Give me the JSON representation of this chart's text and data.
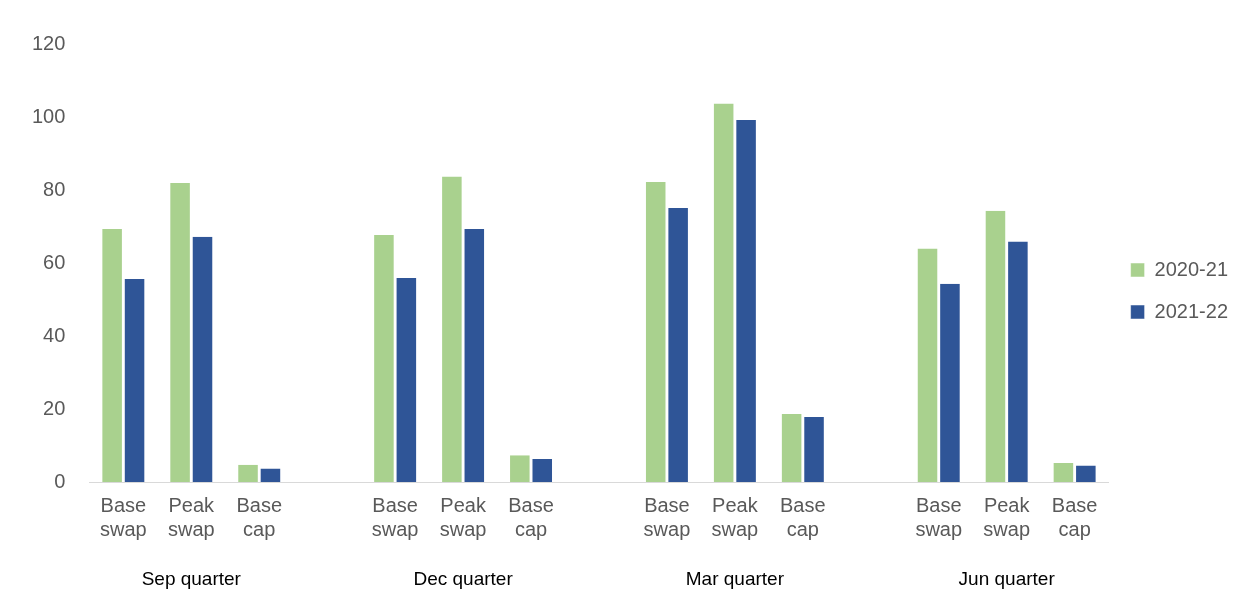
{
  "chart_data": {
    "type": "bar",
    "categories": [
      "Base swap",
      "Peak swap",
      "Base cap",
      null,
      "Base swap",
      "Peak swap",
      "Base cap",
      null,
      "Base swap",
      "Peak swap",
      "Base cap",
      null,
      "Base swap",
      "Peak swap",
      "Base cap"
    ],
    "series": [
      {
        "name": "2020-21",
        "color": "#a9d18e",
        "values": [
          69.3,
          81.9,
          4.7,
          null,
          67.7,
          83.7,
          7.3,
          null,
          82.2,
          103.7,
          18.6,
          null,
          64.0,
          74.3,
          5.2
        ]
      },
      {
        "name": "2021-22",
        "color": "#2f5597",
        "values": [
          55.6,
          67.2,
          3.7,
          null,
          55.9,
          69.3,
          6.3,
          null,
          75.1,
          99.2,
          17.8,
          null,
          54.3,
          65.9,
          4.5
        ]
      }
    ],
    "annotations": [
      "Sep quarter",
      "Dec quarter",
      "Mar quarter",
      "Jun quarter"
    ],
    "ylim": [
      0,
      120
    ],
    "yticks": [
      0,
      20,
      40,
      60,
      80,
      100,
      120
    ],
    "grid": false,
    "legend": "right"
  }
}
